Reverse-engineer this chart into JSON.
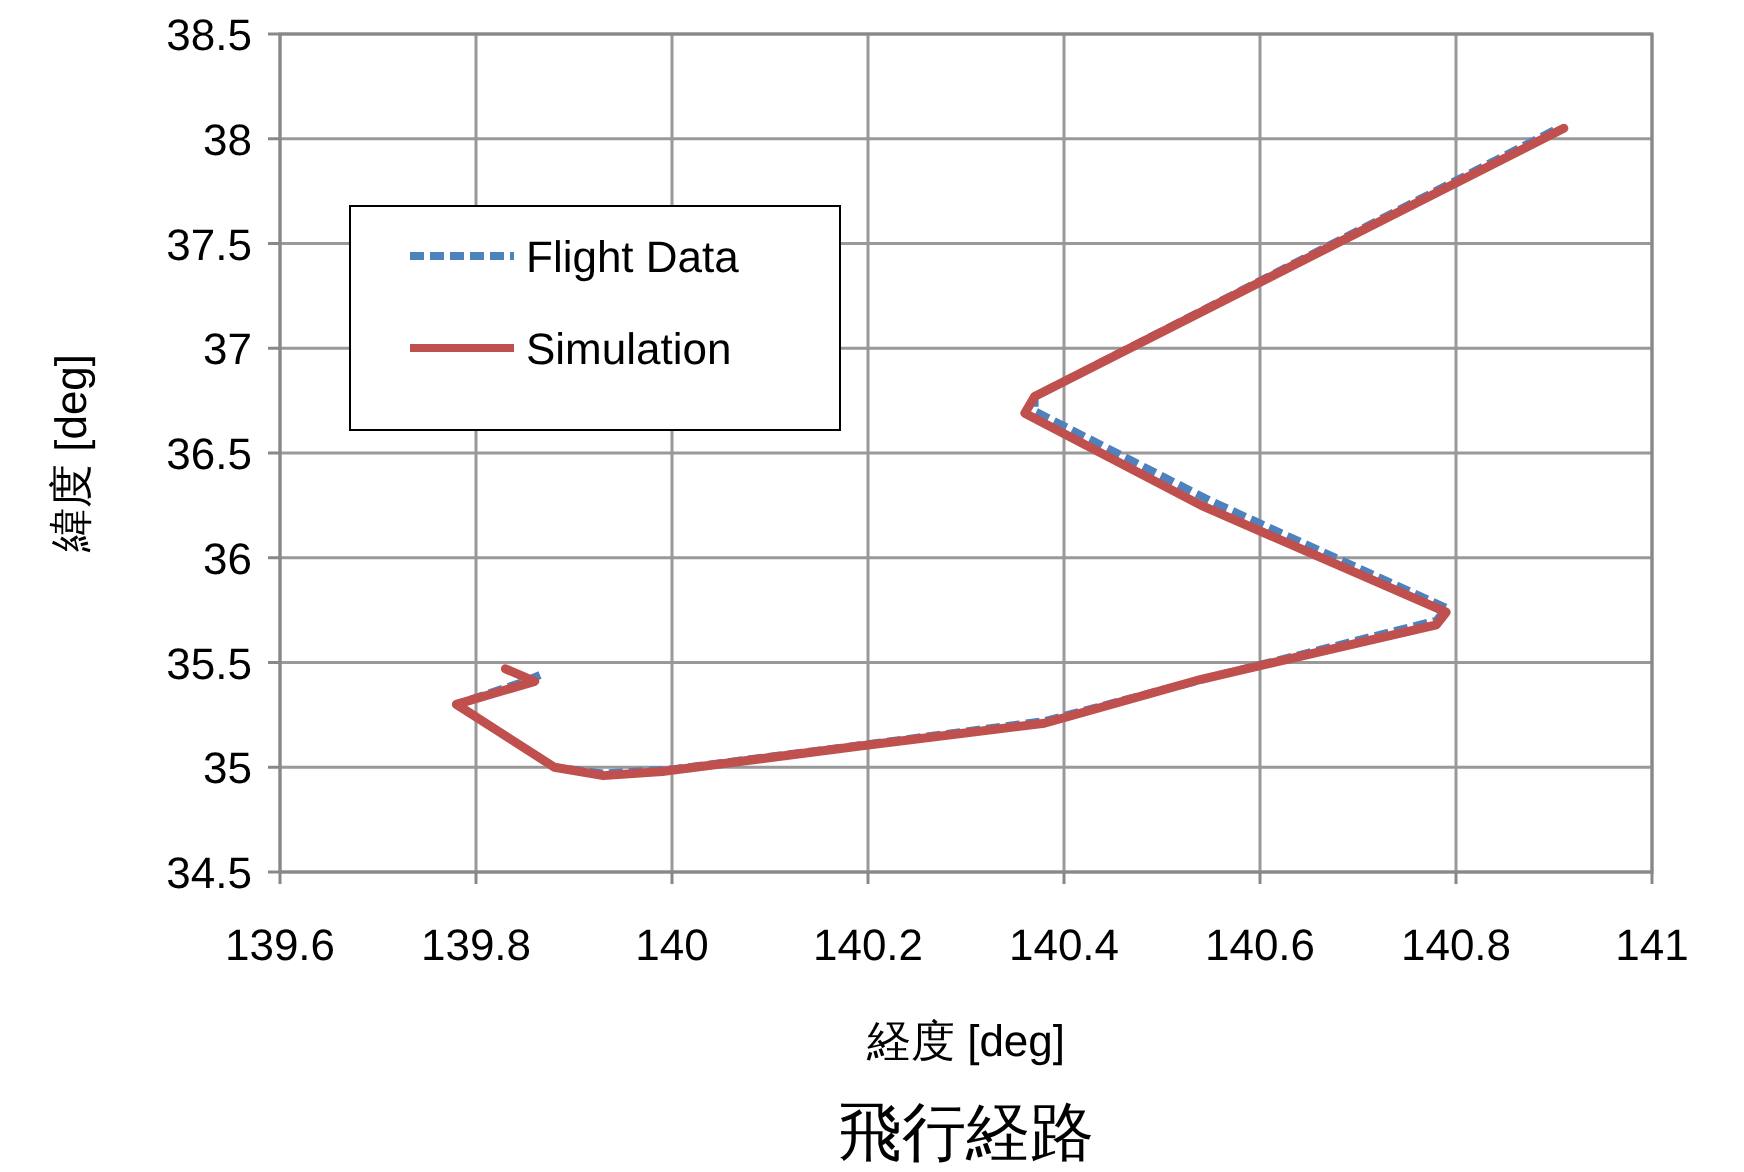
{
  "chart_data": {
    "type": "line",
    "title": "飛行経路",
    "xlabel": "経度 [deg]",
    "ylabel": "緯度 [deg]",
    "xlim": [
      139.6,
      141
    ],
    "xticks": [
      139.6,
      139.8,
      140,
      140.2,
      140.4,
      140.6,
      140.8,
      141
    ],
    "ylim": [
      34.5,
      38.5
    ],
    "yticks": [
      34.5,
      35,
      35.5,
      36,
      36.5,
      37,
      37.5,
      38,
      38.5
    ],
    "grid": true,
    "legend": "top left",
    "marker": "none",
    "series": [
      {
        "name": "Flight Data",
        "color": "#4f81bd",
        "line_style": "dashed",
        "x": [
          139.87,
          139.85,
          139.78,
          139.88,
          139.93,
          140.0,
          140.2,
          140.38,
          140.55,
          140.78,
          140.79,
          140.55,
          140.37,
          140.37,
          140.9
        ],
        "values": [
          35.45,
          35.41,
          35.3,
          35.0,
          34.97,
          34.99,
          35.11,
          35.22,
          35.43,
          35.7,
          35.76,
          36.27,
          36.7,
          36.77,
          38.04
        ]
      },
      {
        "name": "Simulation",
        "color": "#c0504d",
        "line_style": "solid",
        "x": [
          139.83,
          139.86,
          139.78,
          139.88,
          139.93,
          139.99,
          140.19,
          140.38,
          140.54,
          140.78,
          140.79,
          140.54,
          140.36,
          140.37,
          140.91
        ],
        "values": [
          35.47,
          35.41,
          35.3,
          35.0,
          34.96,
          34.98,
          35.1,
          35.21,
          35.42,
          35.68,
          35.74,
          36.25,
          36.69,
          36.77,
          38.05
        ]
      }
    ]
  }
}
